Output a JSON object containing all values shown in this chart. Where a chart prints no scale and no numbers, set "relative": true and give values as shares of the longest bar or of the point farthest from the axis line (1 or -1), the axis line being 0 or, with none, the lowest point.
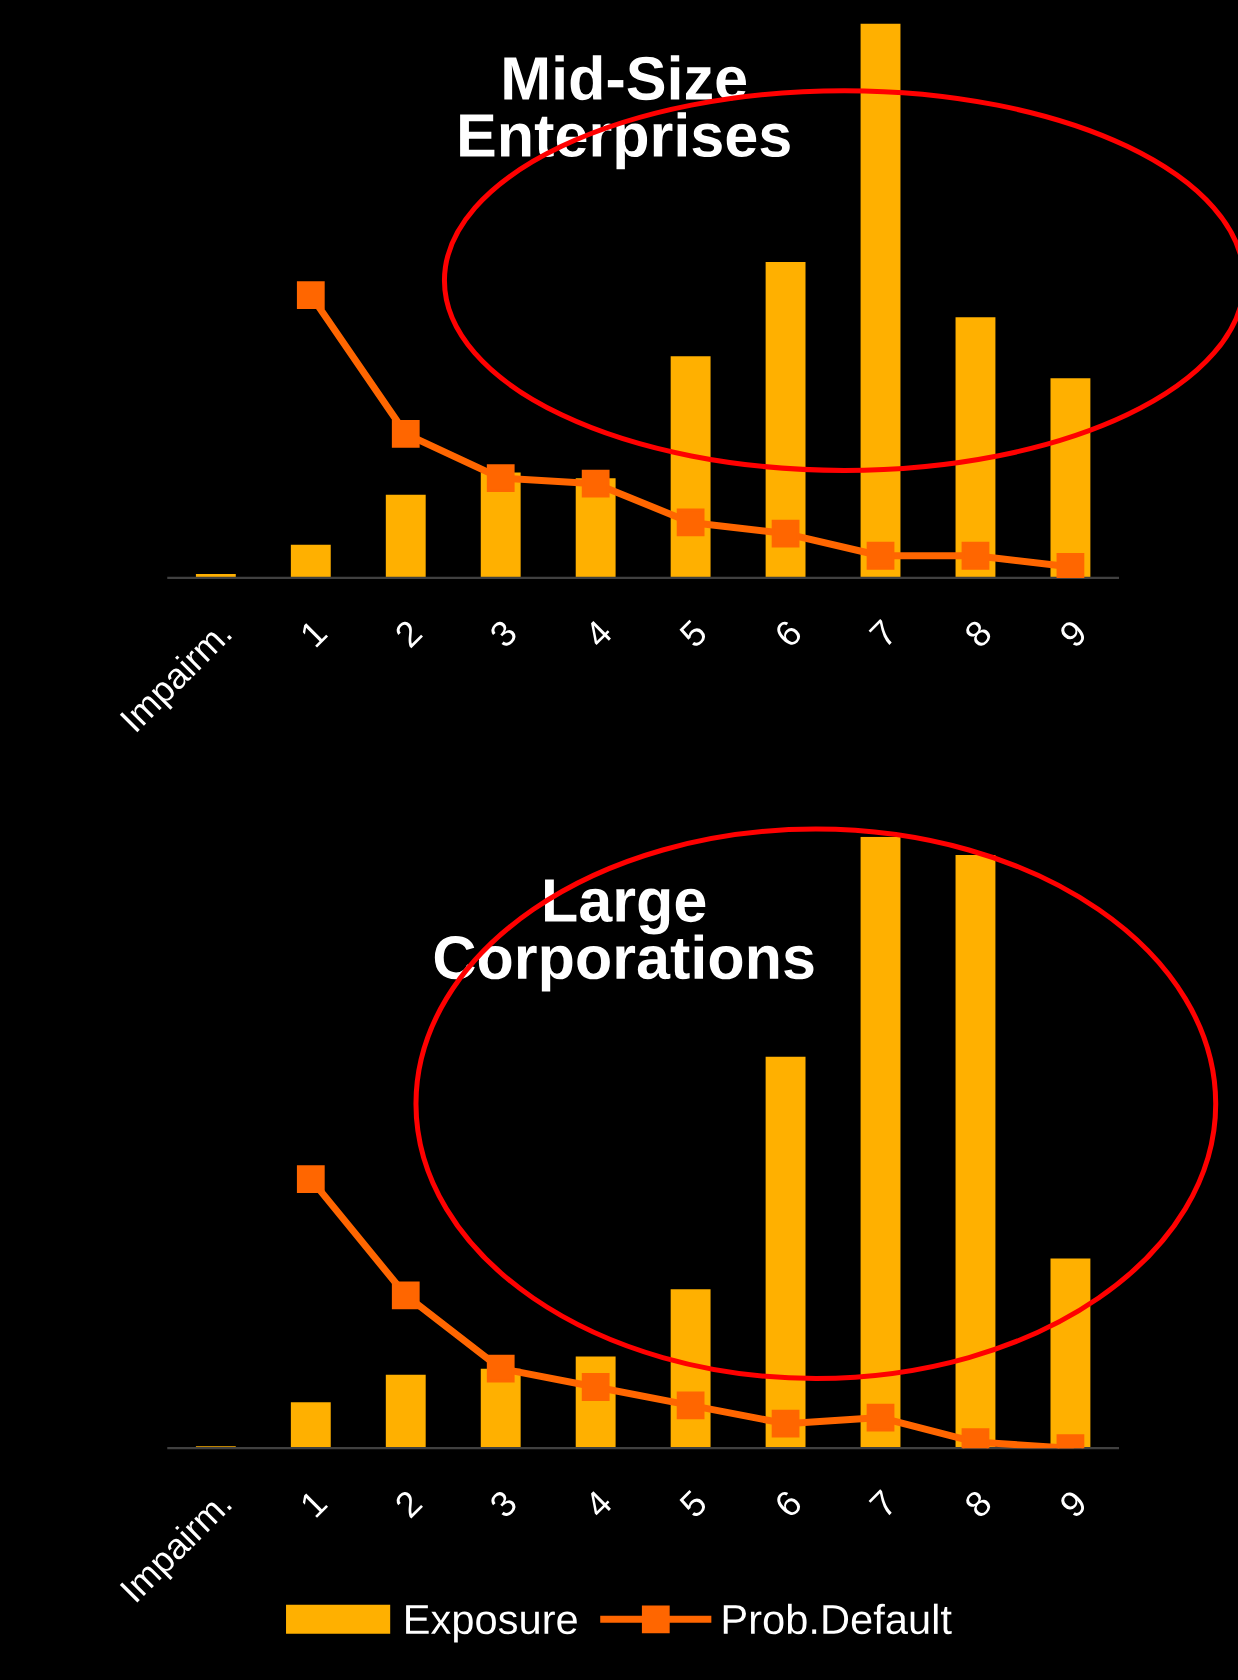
{
  "chart_data": [
    {
      "type": "bar",
      "title": "Mid-Size\nEnterprises",
      "relative": true,
      "categories": [
        "Impairm.",
        "1",
        "2",
        "3",
        "4",
        "5",
        "6",
        "7",
        "8",
        "9"
      ],
      "legend": false,
      "grid": false,
      "series": [
        {
          "color": "#ffb000",
          "values": [
            0.007,
            0.06,
            0.15,
            0.19,
            0.18,
            0.4,
            0.57,
            1,
            0.47,
            0.36
          ]
        },
        {
          "type": "line",
          "color": "#ff6600",
          "marker": "square",
          "line_style": "solid",
          "values": [
            null,
            0.51,
            0.26,
            0.18,
            0.17,
            0.1,
            0.08,
            0.04,
            0.04,
            0.02
          ]
        }
      ]
    },
    {
      "type": "bar",
      "title": "Large\nCorporations",
      "relative": true,
      "categories": [
        "Impairm.",
        "1",
        "2",
        "3",
        "4",
        "5",
        "6",
        "7",
        "8",
        "9"
      ],
      "legend": "bottom",
      "grid": false,
      "series": [
        {
          "name": "Exposure",
          "color": "#ffb000",
          "values": [
            0.003,
            0.075,
            0.12,
            0.13,
            0.15,
            0.26,
            0.64,
            1,
            0.97,
            0.31
          ]
        },
        {
          "type": "line",
          "name": "Prob.Default",
          "color": "#ff6600",
          "marker": "square",
          "line_style": "solid",
          "values": [
            null,
            0.44,
            0.25,
            0.13,
            0.1,
            0.07,
            0.04,
            0.05,
            0.01,
            0.0
          ]
        }
      ]
    }
  ]
}
